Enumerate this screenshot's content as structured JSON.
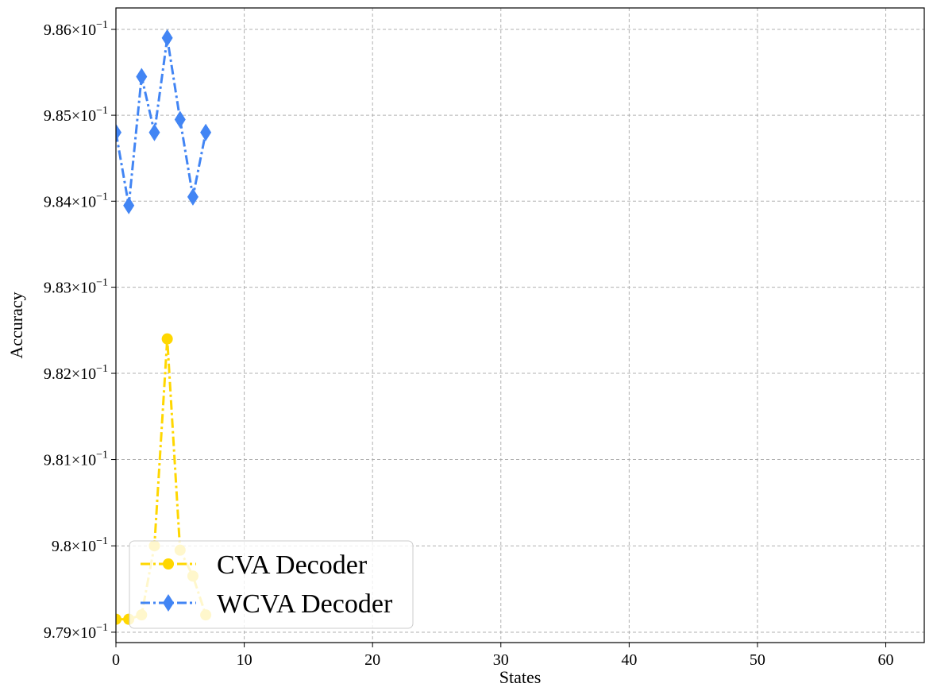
{
  "chart_data": {
    "type": "line",
    "xlabel": "States",
    "ylabel": "Accuracy",
    "xlim": [
      0,
      63
    ],
    "ylim": [
      0.97888,
      0.98625
    ],
    "x_ticks": [
      0,
      10,
      20,
      30,
      40,
      50,
      60
    ],
    "x_tick_labels": [
      "0",
      "10",
      "20",
      "30",
      "40",
      "50",
      "60"
    ],
    "y_ticks": [
      0.979,
      0.98,
      0.981,
      0.982,
      0.983,
      0.984,
      0.985,
      0.986
    ],
    "y_tick_labels": [
      {
        "mantissa": "9.79",
        "exp": "−1"
      },
      {
        "mantissa": "9.8",
        "exp": "−1"
      },
      {
        "mantissa": "9.81",
        "exp": "−1"
      },
      {
        "mantissa": "9.82",
        "exp": "−1"
      },
      {
        "mantissa": "9.83",
        "exp": "−1"
      },
      {
        "mantissa": "9.84",
        "exp": "−1"
      },
      {
        "mantissa": "9.85",
        "exp": "−1"
      },
      {
        "mantissa": "9.86",
        "exp": "−1"
      }
    ],
    "y_scale": "log",
    "grid": true,
    "legend_position": "lower-left",
    "series": [
      {
        "name": "CVA Decoder",
        "color": "#FFD700",
        "marker": "circle",
        "line_style": "dash-dot",
        "x": [
          0,
          1,
          2,
          3,
          4,
          5,
          6,
          7
        ],
        "y": [
          0.97915,
          0.97915,
          0.9792,
          0.98,
          0.9824,
          0.97995,
          0.97965,
          0.9792
        ]
      },
      {
        "name": "WCVA Decoder",
        "color": "#4285F4",
        "marker": "diamond",
        "line_style": "dash-dot",
        "x": [
          0,
          1,
          2,
          3,
          4,
          5,
          6,
          7
        ],
        "y": [
          0.9848,
          0.98395,
          0.98545,
          0.9848,
          0.9859,
          0.98495,
          0.98405,
          0.9848
        ]
      }
    ]
  }
}
